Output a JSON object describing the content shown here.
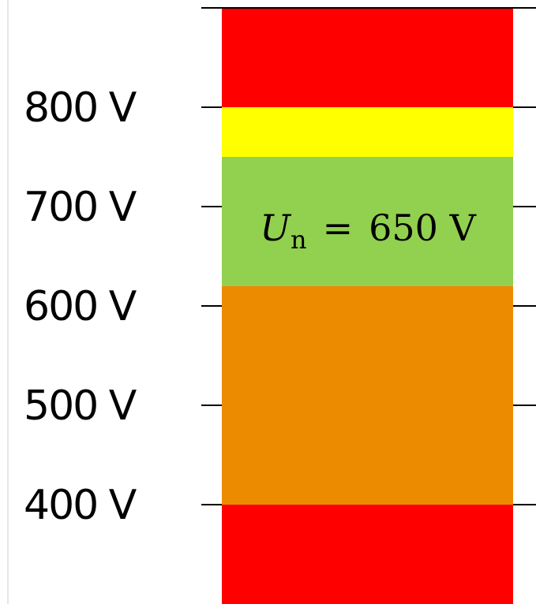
{
  "scale": {
    "unit": "V",
    "ticks": [
      {
        "value": 800,
        "label": "800 V"
      },
      {
        "value": 700,
        "label": "700 V"
      },
      {
        "value": 600,
        "label": "600 V"
      },
      {
        "value": 500,
        "label": "500 V"
      },
      {
        "value": 400,
        "label": "400 V"
      }
    ]
  },
  "bands": [
    {
      "from": 800,
      "to": 900,
      "color": "#ff0000"
    },
    {
      "from": 750,
      "to": 800,
      "color": "#ffff00"
    },
    {
      "from": 620,
      "to": 750,
      "color": "#92d050"
    },
    {
      "from": 400,
      "to": 620,
      "color": "#ed8b00"
    },
    {
      "from": 300,
      "to": 400,
      "color": "#ff0000"
    }
  ],
  "nominal": {
    "symbol": "U",
    "subscript": "n",
    "equals": "=",
    "value": "650 V"
  }
}
